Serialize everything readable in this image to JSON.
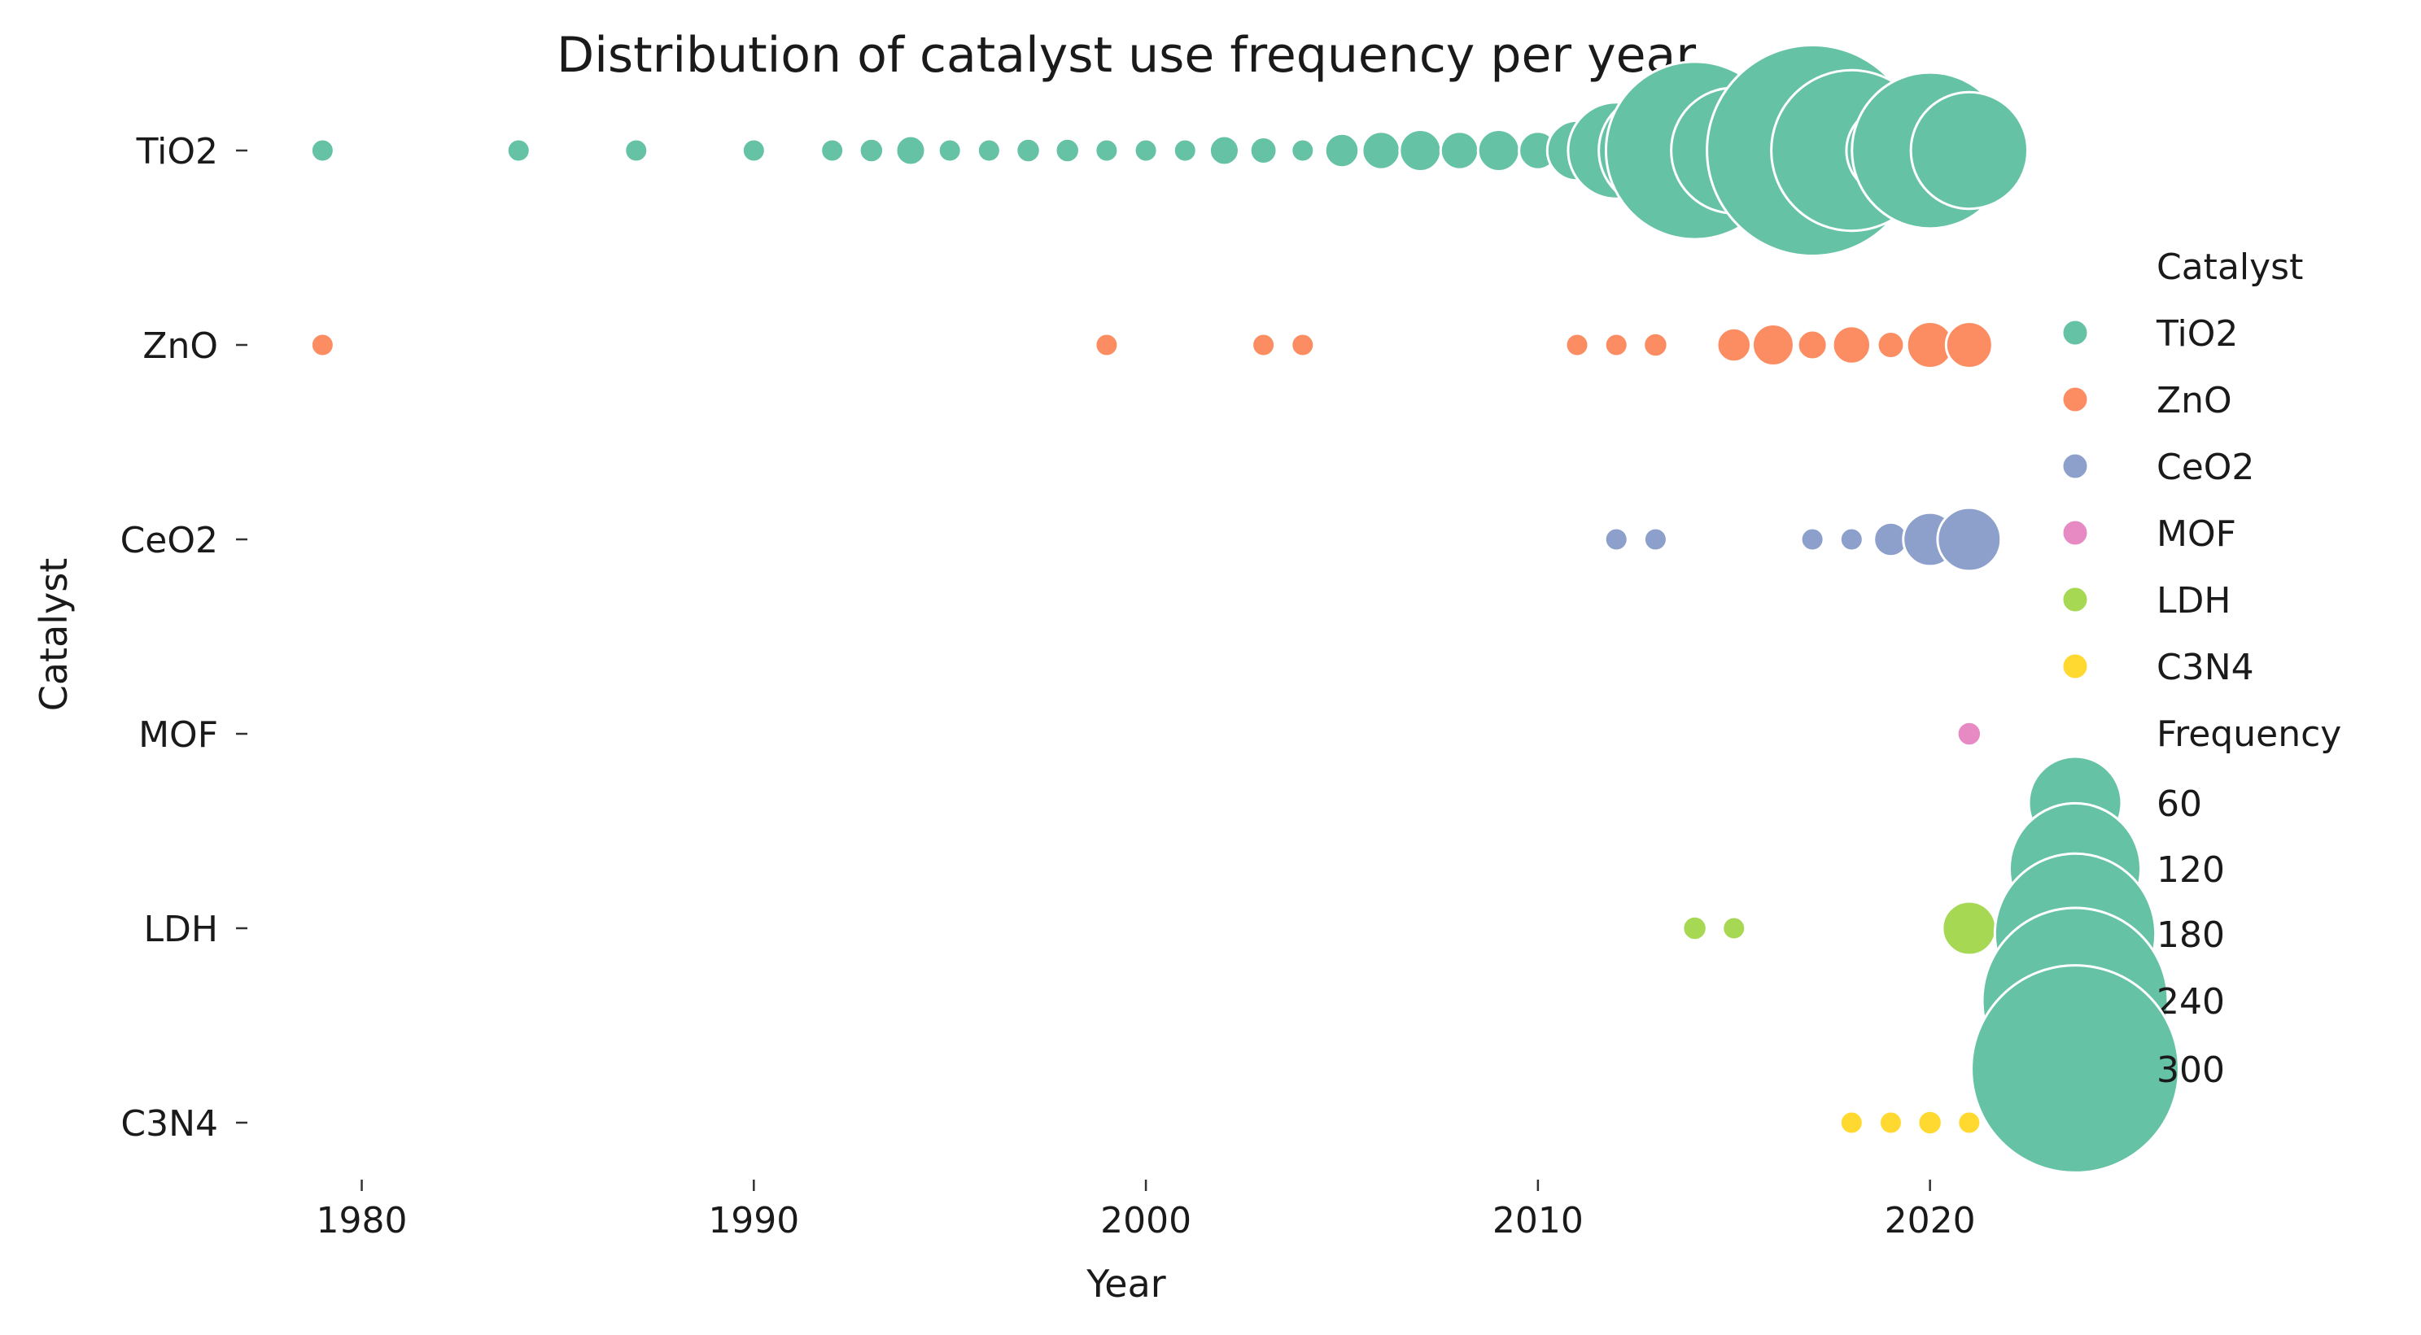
{
  "chart_data": {
    "type": "scatter",
    "title": "Distribution of catalyst use frequency per year",
    "xlabel": "Year",
    "ylabel": "Catalyst",
    "xlim": [
      1977,
      2022
    ],
    "xticks": [
      1980,
      1990,
      2000,
      2010,
      2020
    ],
    "categories": [
      "TiO2",
      "ZnO",
      "CeO2",
      "MOF",
      "LDH",
      "C3N4"
    ],
    "colors": {
      "TiO2": "#66c2a5",
      "ZnO": "#fc8d62",
      "CeO2": "#8da0cb",
      "MOF": "#e78ac3",
      "LDH": "#a6d854",
      "C3N4": "#ffd92f"
    },
    "grid": false,
    "size_variable": "Frequency",
    "legend": {
      "placement": "right",
      "hue_title": "Catalyst",
      "size_title": "Frequency",
      "sizes": [
        60,
        120,
        180,
        240,
        300
      ]
    },
    "series": [
      {
        "name": "TiO2",
        "points": [
          {
            "x": 1979,
            "y": 2
          },
          {
            "x": 1984,
            "y": 3
          },
          {
            "x": 1987,
            "y": 2
          },
          {
            "x": 1990,
            "y": 2
          },
          {
            "x": 1992,
            "y": 3
          },
          {
            "x": 1993,
            "y": 4
          },
          {
            "x": 1994,
            "y": 6
          },
          {
            "x": 1995,
            "y": 3
          },
          {
            "x": 1996,
            "y": 2
          },
          {
            "x": 1997,
            "y": 4
          },
          {
            "x": 1998,
            "y": 4
          },
          {
            "x": 1999,
            "y": 3
          },
          {
            "x": 2000,
            "y": 3
          },
          {
            "x": 2001,
            "y": 3
          },
          {
            "x": 2002,
            "y": 6
          },
          {
            "x": 2003,
            "y": 5
          },
          {
            "x": 2004,
            "y": 3
          },
          {
            "x": 2005,
            "y": 8
          },
          {
            "x": 2006,
            "y": 10
          },
          {
            "x": 2007,
            "y": 12
          },
          {
            "x": 2008,
            "y": 10
          },
          {
            "x": 2009,
            "y": 12
          },
          {
            "x": 2010,
            "y": 10
          },
          {
            "x": 2011,
            "y": 25
          },
          {
            "x": 2012,
            "y": 65
          },
          {
            "x": 2013,
            "y": 90
          },
          {
            "x": 2014,
            "y": 220
          },
          {
            "x": 2015,
            "y": 110
          },
          {
            "x": 2016,
            "y": 75
          },
          {
            "x": 2017,
            "y": 310
          },
          {
            "x": 2018,
            "y": 180
          },
          {
            "x": 2019,
            "y": 55
          },
          {
            "x": 2020,
            "y": 170
          },
          {
            "x": 2021,
            "y": 95
          }
        ]
      },
      {
        "name": "ZnO",
        "points": [
          {
            "x": 1979,
            "y": 2
          },
          {
            "x": 1999,
            "y": 2
          },
          {
            "x": 2003,
            "y": 2
          },
          {
            "x": 2004,
            "y": 1
          },
          {
            "x": 2011,
            "y": 2
          },
          {
            "x": 2012,
            "y": 2
          },
          {
            "x": 2013,
            "y": 4
          },
          {
            "x": 2015,
            "y": 8
          },
          {
            "x": 2016,
            "y": 12
          },
          {
            "x": 2017,
            "y": 6
          },
          {
            "x": 2018,
            "y": 10
          },
          {
            "x": 2019,
            "y": 5
          },
          {
            "x": 2020,
            "y": 15
          },
          {
            "x": 2021,
            "y": 15
          }
        ]
      },
      {
        "name": "CeO2",
        "points": [
          {
            "x": 2012,
            "y": 3
          },
          {
            "x": 2013,
            "y": 2
          },
          {
            "x": 2017,
            "y": 2
          },
          {
            "x": 2018,
            "y": 3
          },
          {
            "x": 2019,
            "y": 8
          },
          {
            "x": 2020,
            "y": 20
          },
          {
            "x": 2021,
            "y": 28
          }
        ]
      },
      {
        "name": "MOF",
        "points": [
          {
            "x": 2021,
            "y": 4
          }
        ]
      },
      {
        "name": "LDH",
        "points": [
          {
            "x": 2014,
            "y": 4
          },
          {
            "x": 2015,
            "y": 3
          },
          {
            "x": 2021,
            "y": 20
          }
        ]
      },
      {
        "name": "C3N4",
        "points": [
          {
            "x": 2018,
            "y": 3
          },
          {
            "x": 2019,
            "y": 2
          },
          {
            "x": 2020,
            "y": 4
          },
          {
            "x": 2021,
            "y": 3
          }
        ]
      }
    ]
  }
}
